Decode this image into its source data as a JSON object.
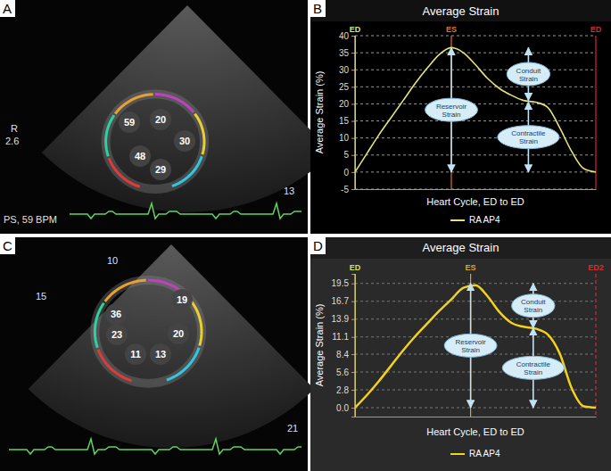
{
  "panel_letters": [
    "A",
    "B",
    "C",
    "D"
  ],
  "echo_panels": [
    {
      "segments": [
        59,
        20,
        30,
        48,
        29
      ],
      "texts": [
        "R",
        "2.6",
        "PS, 59 BPM",
        "13"
      ]
    },
    {
      "segments": [
        36,
        19,
        23,
        20,
        11,
        13
      ],
      "texts": [
        "10",
        "15",
        "21"
      ]
    }
  ],
  "chart_data": [
    {
      "type": "line",
      "title": "Average Strain",
      "x_label": "Heart Cycle, ED to ED",
      "y_label": "Average Strain (%)",
      "x": [
        0,
        0.05,
        0.1,
        0.15,
        0.2,
        0.25,
        0.3,
        0.35,
        0.4,
        0.45,
        0.5,
        0.55,
        0.6,
        0.65,
        0.7,
        0.75,
        0.8,
        0.85,
        0.9,
        0.95,
        1
      ],
      "series": [
        {
          "name": "RA AP4",
          "color": "#e6e27a",
          "values": [
            0,
            5.5,
            11,
            16,
            21,
            26,
            30.5,
            34.5,
            36.5,
            35,
            31.5,
            27.5,
            24.5,
            22.5,
            21,
            20.5,
            19,
            13,
            6,
            1,
            0
          ]
        }
      ],
      "xlim": [
        0,
        1
      ],
      "ylim": [
        -5,
        40
      ],
      "yticks": [
        -5,
        0,
        5,
        10,
        15,
        20,
        25,
        30,
        35,
        40
      ],
      "grid": true,
      "tick_labels": "y",
      "legend": "bottom",
      "markers": [
        {
          "label": "ED",
          "x": 0,
          "color": "#e6e27a"
        },
        {
          "label": "ES",
          "x": 0.4,
          "color": "#e0702a"
        },
        {
          "label": "ED",
          "x": 1,
          "color": "#d02a2a"
        }
      ],
      "annotations": [
        {
          "text": "Reservoir Strain",
          "x": 0.4,
          "from": 0,
          "to": 36.5
        },
        {
          "text": "Conduit Strain",
          "x": 0.72,
          "from": 36.5,
          "to": 21
        },
        {
          "text": "Contractile Strain",
          "x": 0.72,
          "from": 20.5,
          "to": 0
        }
      ]
    },
    {
      "type": "line",
      "title": "Average Strain",
      "x_label": "Heart Cycle, ED to ED",
      "y_label": "Average Strain (%)",
      "x": [
        0,
        0.05,
        0.1,
        0.15,
        0.2,
        0.25,
        0.3,
        0.35,
        0.4,
        0.45,
        0.5,
        0.55,
        0.6,
        0.65,
        0.7,
        0.75,
        0.8,
        0.85,
        0.9,
        0.95,
        1
      ],
      "series": [
        {
          "name": "RA AP4",
          "color": "#f2d21b",
          "values": [
            0,
            2,
            4.2,
            6.6,
            9,
            11.2,
            13.2,
            15.2,
            17,
            18.8,
            19.2,
            17.5,
            15,
            13.3,
            12.7,
            12.4,
            11.5,
            8.5,
            3,
            0.2,
            0
          ]
        }
      ],
      "xlim": [
        0,
        1
      ],
      "ylim": [
        -1.4,
        21
      ],
      "yticks": [
        {
          "value": 0,
          "label": "0.0"
        },
        2.8,
        5.6,
        8.4,
        11.1,
        13.9,
        16.7,
        19.5
      ],
      "grid": true,
      "tick_labels": "y",
      "legend": "bottom",
      "markers": [
        {
          "label": "ED",
          "x": 0,
          "color": "#e8d84a"
        },
        {
          "label": "ES",
          "x": 0.48,
          "color": "#e8a02a"
        },
        {
          "label": "ED2",
          "x": 1,
          "color": "#d03030"
        }
      ],
      "annotations": [
        {
          "text": "Reservoir Strain",
          "x": 0.48,
          "from": 0,
          "to": 19.5
        },
        {
          "text": "Conduit Strain",
          "x": 0.74,
          "from": 19.5,
          "to": 12.5
        },
        {
          "text": "Contractile Strain",
          "x": 0.74,
          "from": 12.5,
          "to": 0
        }
      ]
    }
  ]
}
